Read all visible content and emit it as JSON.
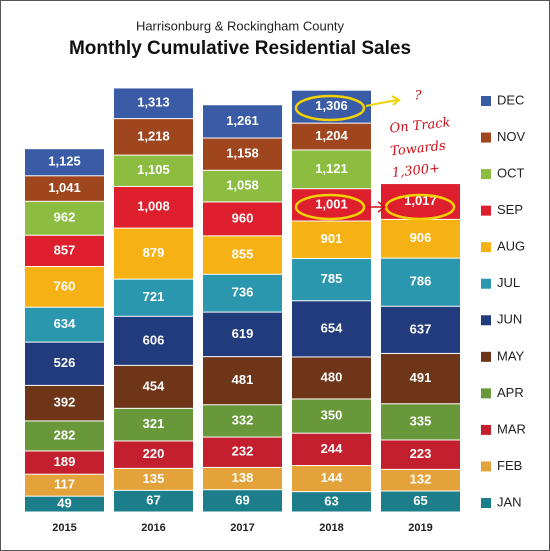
{
  "chart_data": {
    "type": "overlap-bar",
    "subtitle": "Harrisonburg & Rockingham County",
    "title": "Monthly Cumulative Residential Sales",
    "categories": [
      "2015",
      "2016",
      "2017",
      "2018",
      "2019"
    ],
    "ylim": [
      0,
      1350
    ],
    "series": [
      {
        "name": "JAN",
        "color": "#1c7e8a",
        "values": [
          49,
          67,
          69,
          63,
          65
        ]
      },
      {
        "name": "FEB",
        "color": "#e4a33a",
        "values": [
          117,
          135,
          138,
          144,
          132
        ]
      },
      {
        "name": "MAR",
        "color": "#c41f2e",
        "values": [
          189,
          220,
          232,
          244,
          223
        ]
      },
      {
        "name": "APR",
        "color": "#68983a",
        "values": [
          282,
          321,
          332,
          350,
          335
        ]
      },
      {
        "name": "MAY",
        "color": "#6e3518",
        "values": [
          392,
          454,
          481,
          480,
          491
        ]
      },
      {
        "name": "JUN",
        "color": "#223b7c",
        "values": [
          526,
          606,
          619,
          654,
          637
        ]
      },
      {
        "name": "JUL",
        "color": "#2a97ae",
        "values": [
          634,
          721,
          736,
          785,
          786
        ]
      },
      {
        "name": "AUG",
        "color": "#f6b214",
        "values": [
          760,
          879,
          855,
          901,
          906
        ]
      },
      {
        "name": "SEP",
        "color": "#de1f2d",
        "values": [
          857,
          1008,
          960,
          1001,
          1017
        ]
      },
      {
        "name": "OCT",
        "color": "#8cbd40",
        "values": [
          962,
          1105,
          1058,
          1121,
          null
        ]
      },
      {
        "name": "NOV",
        "color": "#a0461f",
        "values": [
          1041,
          1218,
          1158,
          1204,
          null
        ]
      },
      {
        "name": "DEC",
        "color": "#3a5ca6",
        "values": [
          1125,
          1313,
          1261,
          1306,
          null
        ]
      }
    ],
    "value_labels": [
      [
        "49",
        "67",
        "69",
        "63",
        "65"
      ],
      [
        "117",
        "135",
        "138",
        "144",
        "132"
      ],
      [
        "189",
        "220",
        "232",
        "244",
        "223"
      ],
      [
        "282",
        "321",
        "332",
        "350",
        "335"
      ],
      [
        "392",
        "454",
        "481",
        "480",
        "491"
      ],
      [
        "526",
        "606",
        "619",
        "654",
        "637"
      ],
      [
        "634",
        "721",
        "736",
        "785",
        "786"
      ],
      [
        "760",
        "879",
        "855",
        "901",
        "906"
      ],
      [
        "857",
        "1,008",
        "960",
        "1,001",
        "1,017"
      ],
      [
        "962",
        "1,105",
        "1,058",
        "1,121",
        null
      ],
      [
        "1,041",
        "1,218",
        "1,158",
        "1,204",
        null
      ],
      [
        "1,125",
        "1,313",
        "1,261",
        "1,306",
        null
      ]
    ],
    "annotations": [
      "?",
      "On Track",
      "Towards",
      "1,300+"
    ]
  }
}
